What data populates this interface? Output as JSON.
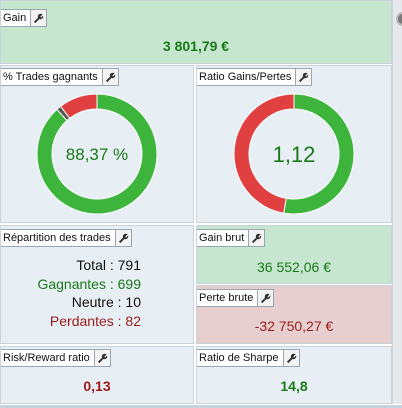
{
  "colors": {
    "green_text": "#1a7a1a",
    "red_text": "#9b1b1b",
    "donut_green": "#3db53d",
    "donut_red": "#e04040",
    "donut_neutral": "#555555"
  },
  "gain": {
    "title": "Gain",
    "value": "3 801,79 €"
  },
  "trades_pct": {
    "title": "% Trades gagnants",
    "value": "88,37 %",
    "win_fraction": 0.8837,
    "neutral_fraction": 0.0126
  },
  "ratio_gp": {
    "title": "Ratio Gains/Pertes",
    "value": "1,12",
    "green_fraction": 0.5275
  },
  "repartition": {
    "title": "Répartition des trades",
    "total_label": "Total :",
    "total_value": "791",
    "gagnantes_label": "Gagnantes :",
    "gagnantes_value": "699",
    "neutre_label": "Neutre :",
    "neutre_value": "10",
    "perdantes_label": "Perdantes :",
    "perdantes_value": "82"
  },
  "gain_brut": {
    "title": "Gain brut",
    "value": "36 552,06 €"
  },
  "perte_brute": {
    "title": "Perte brute",
    "value": "-32 750,27 €"
  },
  "risk_reward": {
    "title": "Risk/Reward ratio",
    "value": "0,13"
  },
  "sharpe": {
    "title": "Ratio de Sharpe",
    "value": "14,8"
  },
  "icons": {
    "settings": "wrench-icon"
  }
}
